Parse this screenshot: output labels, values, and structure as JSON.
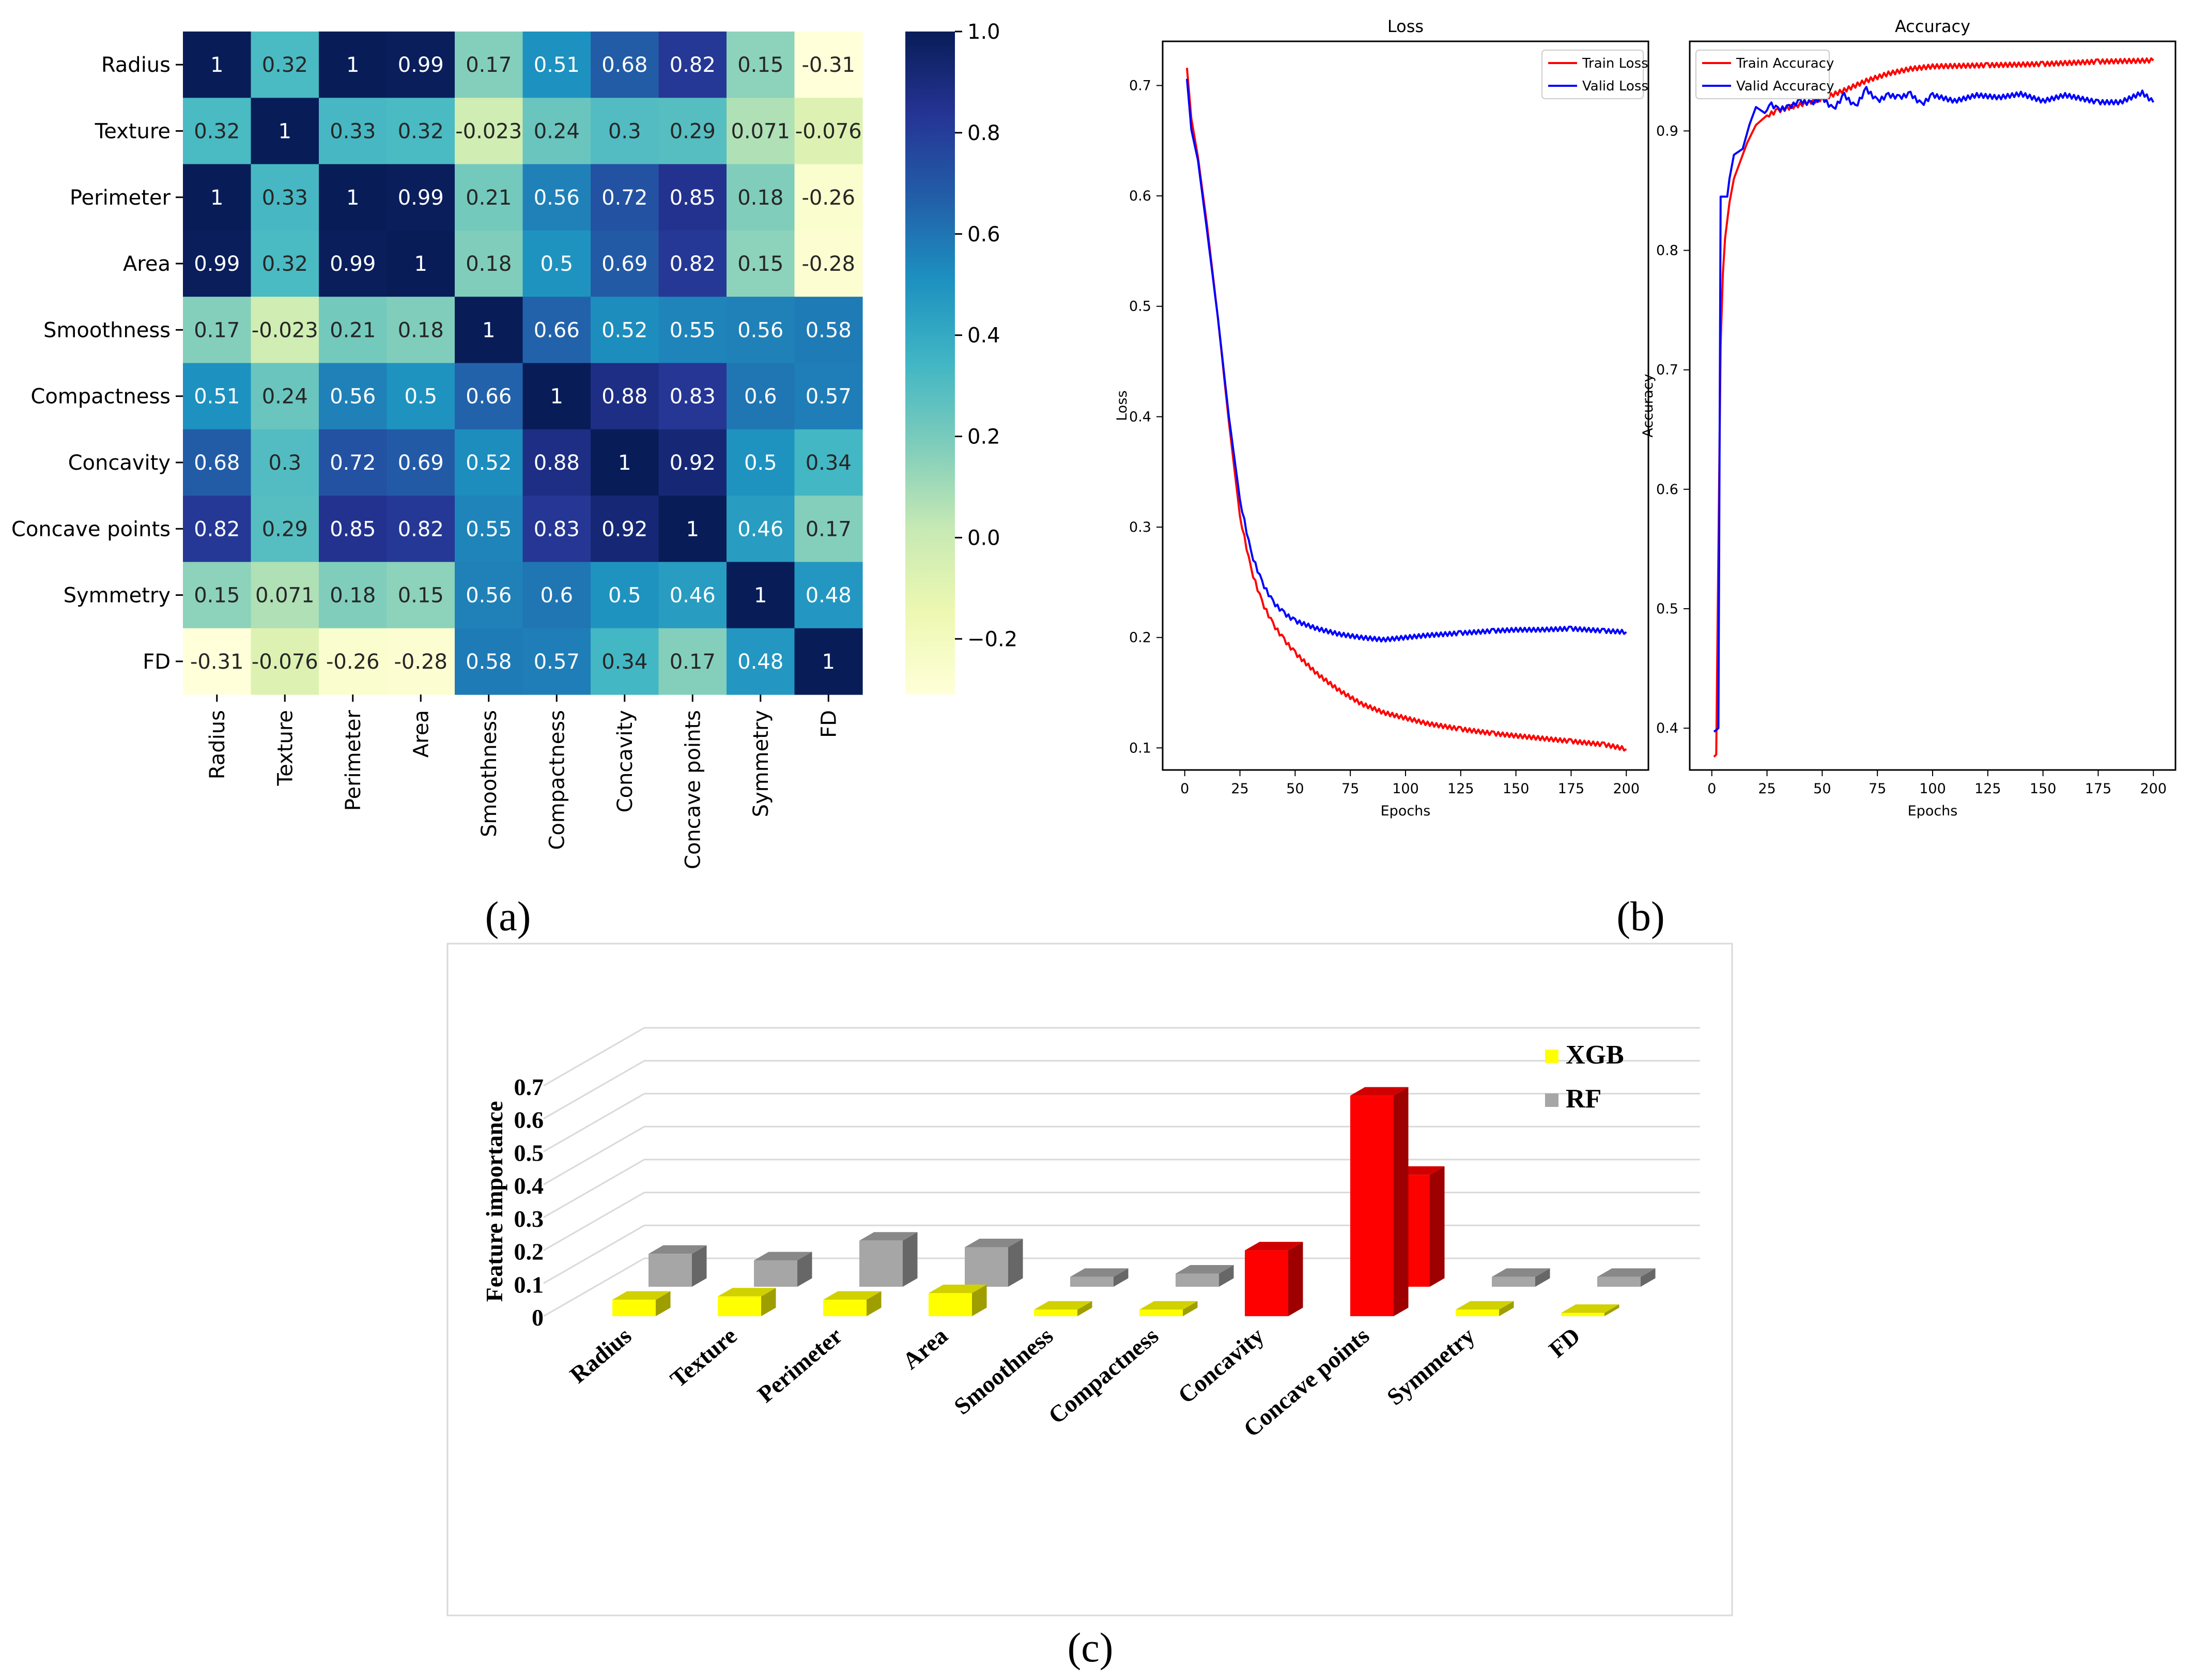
{
  "panel_labels": [
    "(a)",
    "(b)",
    "(c)"
  ],
  "chart_data": [
    {
      "type": "heatmap",
      "labels": [
        "Radius",
        "Texture",
        "Perimeter",
        "Area",
        "Smoothness",
        "Compactness",
        "Concavity",
        "Concave points",
        "Symmetry",
        "FD"
      ],
      "matrix": [
        [
          "1",
          "0.32",
          "1",
          "0.99",
          "0.17",
          "0.51",
          "0.68",
          "0.82",
          "0.15",
          "-0.31"
        ],
        [
          "0.32",
          "1",
          "0.33",
          "0.32",
          "-0.023",
          "0.24",
          "0.3",
          "0.29",
          "0.071",
          "-0.076"
        ],
        [
          "1",
          "0.33",
          "1",
          "0.99",
          "0.21",
          "0.56",
          "0.72",
          "0.85",
          "0.18",
          "-0.26"
        ],
        [
          "0.99",
          "0.32",
          "0.99",
          "1",
          "0.18",
          "0.5",
          "0.69",
          "0.82",
          "0.15",
          "-0.28"
        ],
        [
          "0.17",
          "-0.023",
          "0.21",
          "0.18",
          "1",
          "0.66",
          "0.52",
          "0.55",
          "0.56",
          "0.58"
        ],
        [
          "0.51",
          "0.24",
          "0.56",
          "0.5",
          "0.66",
          "1",
          "0.88",
          "0.83",
          "0.6",
          "0.57"
        ],
        [
          "0.68",
          "0.3",
          "0.72",
          "0.69",
          "0.52",
          "0.88",
          "1",
          "0.92",
          "0.5",
          "0.34"
        ],
        [
          "0.82",
          "0.29",
          "0.85",
          "0.82",
          "0.55",
          "0.83",
          "0.92",
          "1",
          "0.46",
          "0.17"
        ],
        [
          "0.15",
          "0.071",
          "0.18",
          "0.15",
          "0.56",
          "0.6",
          "0.5",
          "0.46",
          "1",
          "0.48"
        ],
        [
          "-0.31",
          "-0.076",
          "-0.26",
          "-0.28",
          "0.58",
          "0.57",
          "0.34",
          "0.17",
          "0.48",
          "1"
        ]
      ],
      "colorbar": {
        "range": [
          -0.31,
          1.0
        ],
        "ticks": [
          "1.0",
          "0.8",
          "0.6",
          "0.4",
          "0.2",
          "0.0",
          "−0.2"
        ],
        "tick_values": [
          1.0,
          0.8,
          0.6,
          0.4,
          0.2,
          0.0,
          -0.2
        ]
      }
    },
    {
      "type": "line",
      "title": "Loss",
      "xlabel": "Epochs",
      "ylabel": "Loss",
      "xlim": [
        -10,
        210
      ],
      "ylim": [
        0.08,
        0.74
      ],
      "xticks": [
        0,
        25,
        50,
        75,
        100,
        125,
        150,
        175,
        200
      ],
      "yticks": [
        0.1,
        0.2,
        0.3,
        0.4,
        0.5,
        0.6,
        0.7
      ],
      "legend_position": "top-right",
      "series": [
        {
          "name": "Train Loss",
          "color": "#ff0000",
          "points": [
            [
              1,
              0.716
            ],
            [
              3,
              0.67
            ],
            [
              6,
              0.635
            ],
            [
              10,
              0.575
            ],
            [
              15,
              0.49
            ],
            [
              20,
              0.395
            ],
            [
              25,
              0.31
            ],
            [
              30,
              0.262
            ],
            [
              35,
              0.232
            ],
            [
              40,
              0.212
            ],
            [
              45,
              0.198
            ],
            [
              50,
              0.186
            ],
            [
              60,
              0.167
            ],
            [
              70,
              0.152
            ],
            [
              80,
              0.14
            ],
            [
              90,
              0.132
            ],
            [
              100,
              0.127
            ],
            [
              110,
              0.122
            ],
            [
              125,
              0.117
            ],
            [
              140,
              0.113
            ],
            [
              150,
              0.111
            ],
            [
              160,
              0.109
            ],
            [
              175,
              0.106
            ],
            [
              190,
              0.103
            ],
            [
              200,
              0.099
            ]
          ]
        },
        {
          "name": "Valid Loss",
          "color": "#0000ff",
          "points": [
            [
              1,
              0.706
            ],
            [
              3,
              0.66
            ],
            [
              6,
              0.632
            ],
            [
              10,
              0.57
            ],
            [
              15,
              0.49
            ],
            [
              20,
              0.4
            ],
            [
              25,
              0.325
            ],
            [
              30,
              0.277
            ],
            [
              35,
              0.25
            ],
            [
              40,
              0.232
            ],
            [
              45,
              0.222
            ],
            [
              50,
              0.215
            ],
            [
              60,
              0.208
            ],
            [
              70,
              0.203
            ],
            [
              80,
              0.2
            ],
            [
              90,
              0.198
            ],
            [
              100,
              0.2
            ],
            [
              110,
              0.202
            ],
            [
              125,
              0.204
            ],
            [
              140,
              0.206
            ],
            [
              150,
              0.207
            ],
            [
              160,
              0.207
            ],
            [
              175,
              0.208
            ],
            [
              190,
              0.206
            ],
            [
              200,
              0.205
            ]
          ]
        }
      ]
    },
    {
      "type": "line",
      "title": "Accuracy",
      "xlabel": "Epochs",
      "ylabel": "Accuracy",
      "xlim": [
        -10,
        210
      ],
      "ylim": [
        0.365,
        0.975
      ],
      "xticks": [
        0,
        25,
        50,
        75,
        100,
        125,
        150,
        175,
        200
      ],
      "yticks": [
        0.4,
        0.5,
        0.6,
        0.7,
        0.8,
        0.9
      ],
      "legend_position": "top-left",
      "series": [
        {
          "name": "Train Accuracy",
          "color": "#ff0000",
          "points": [
            [
              1,
              0.376
            ],
            [
              2,
              0.378
            ],
            [
              3,
              0.55
            ],
            [
              4,
              0.72
            ],
            [
              5,
              0.78
            ],
            [
              6,
              0.81
            ],
            [
              8,
              0.84
            ],
            [
              10,
              0.86
            ],
            [
              13,
              0.875
            ],
            [
              16,
              0.89
            ],
            [
              20,
              0.905
            ],
            [
              25,
              0.913
            ],
            [
              30,
              0.917
            ],
            [
              40,
              0.922
            ],
            [
              50,
              0.927
            ],
            [
              60,
              0.934
            ],
            [
              70,
              0.942
            ],
            [
              80,
              0.948
            ],
            [
              90,
              0.952
            ],
            [
              100,
              0.954
            ],
            [
              125,
              0.955
            ],
            [
              150,
              0.956
            ],
            [
              175,
              0.958
            ],
            [
              200,
              0.959
            ]
          ]
        },
        {
          "name": "Valid Accuracy",
          "color": "#0000ff",
          "points": [
            [
              1,
              0.397
            ],
            [
              3,
              0.4
            ],
            [
              4,
              0.845
            ],
            [
              7,
              0.845
            ],
            [
              8,
              0.86
            ],
            [
              10,
              0.88
            ],
            [
              14,
              0.885
            ],
            [
              17,
              0.905
            ],
            [
              20,
              0.92
            ],
            [
              24,
              0.915
            ],
            [
              27,
              0.922
            ],
            [
              30,
              0.918
            ],
            [
              35,
              0.92
            ],
            [
              40,
              0.925
            ],
            [
              45,
              0.923
            ],
            [
              50,
              0.928
            ],
            [
              55,
              0.918
            ],
            [
              60,
              0.93
            ],
            [
              65,
              0.92
            ],
            [
              70,
              0.935
            ],
            [
              75,
              0.925
            ],
            [
              80,
              0.93
            ],
            [
              85,
              0.928
            ],
            [
              90,
              0.931
            ],
            [
              95,
              0.922
            ],
            [
              100,
              0.93
            ],
            [
              110,
              0.925
            ],
            [
              120,
              0.93
            ],
            [
              130,
              0.928
            ],
            [
              140,
              0.931
            ],
            [
              150,
              0.925
            ],
            [
              160,
              0.93
            ],
            [
              175,
              0.924
            ],
            [
              185,
              0.924
            ],
            [
              195,
              0.932
            ],
            [
              200,
              0.924
            ]
          ]
        }
      ]
    },
    {
      "type": "bar",
      "style": "3d-grouped",
      "ylabel": "Feature importance",
      "ylim": [
        0,
        0.7
      ],
      "yticks": [
        "0",
        "0.1",
        "0.2",
        "0.3",
        "0.4",
        "0.5",
        "0.6",
        "0.7"
      ],
      "categories": [
        "Radius",
        "Texture",
        "Perimeter",
        "Area",
        "Smoothness",
        "Compactness",
        "Concavity",
        "Concave points",
        "Symmetry",
        "FD"
      ],
      "series": [
        {
          "name": "XGB",
          "color": "#ffff00",
          "values": [
            0.05,
            0.06,
            0.05,
            0.07,
            0.02,
            0.02,
            0.2,
            0.67,
            0.02,
            0.01
          ]
        },
        {
          "name": "RF",
          "color": "#a6a6a6",
          "values": [
            0.1,
            0.08,
            0.14,
            0.12,
            0.03,
            0.04,
            0.0,
            0.34,
            0.03,
            0.03
          ]
        }
      ],
      "highlight": {
        "categories": [
          "Concavity",
          "Concave points"
        ],
        "color": "#ff0000"
      },
      "legend_position": "top-right"
    }
  ]
}
